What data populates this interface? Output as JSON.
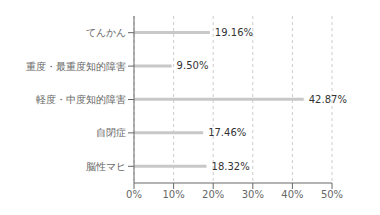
{
  "chart_data": {
    "type": "bar",
    "orientation": "horizontal",
    "categories": [
      "脳性マヒ",
      "自閉症",
      "軽度・中度知的障害",
      "重度・最重度知的障害",
      "てんかん"
    ],
    "values": [
      18.32,
      17.46,
      42.87,
      9.5,
      19.16
    ],
    "value_labels": [
      "18.32%",
      "17.46%",
      "42.87%",
      "9.50%",
      "19.16%"
    ],
    "color": "#c8c8c8",
    "xlim": [
      0,
      50
    ],
    "xticks": [
      {
        "value": 0,
        "label": "0%"
      },
      {
        "value": 10,
        "label": "10%"
      },
      {
        "value": 20,
        "label": "20%"
      },
      {
        "value": 30,
        "label": "30%"
      },
      {
        "value": 40,
        "label": "40%"
      },
      {
        "value": 50,
        "label": "50%"
      }
    ],
    "grid": true,
    "data_labels": true
  }
}
